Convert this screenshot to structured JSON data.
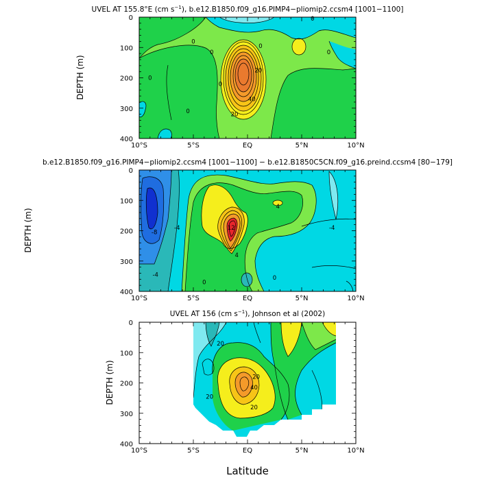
{
  "panels": [
    {
      "title_html": "UVEL AT 155.8°E (cm s<tspan baseline-shift=\"super\" font-size=\"7\">−1</tspan>), b.e12.B1850.f09_g16.PIMP4−pliomip2.ccsm4 [1001−1100]",
      "ylabel": "DEPTH (m)",
      "xticks": [
        "10°S",
        "5°S",
        "EQ",
        "5°N",
        "10°N"
      ],
      "yticks": [
        "0",
        "100",
        "200",
        "300",
        "400"
      ]
    },
    {
      "title": "b.e12.B1850.f09_g16.PIMP4−pliomip2.ccsm4 [1001−1100] − b.e12.B1850C5CN.f09_g16.preind.ccsm4 [80−179]",
      "ylabel": "DEPTH (m)",
      "xticks": [
        "10°S",
        "5°S",
        "EQ",
        "5°N",
        "10°N"
      ],
      "yticks": [
        "0",
        "100",
        "200",
        "300",
        "400"
      ]
    },
    {
      "title_html": "UVEL AT 156 (cm s<tspan baseline-shift=\"super\" font-size=\"7\">−1</tspan>), Johnson et al (2002)",
      "ylabel": "DEPTH (m)",
      "xticks": [
        "10°S",
        "5°S",
        "EQ",
        "5°N",
        "10°N"
      ],
      "yticks": [
        "0",
        "100",
        "200",
        "300",
        "400"
      ]
    }
  ],
  "xlabel": "Latitude",
  "colors": {
    "cyan_light": "#7fe9f0",
    "cyan": "#00d8e4",
    "teal": "#2ab8b8",
    "green_light": "#7de84a",
    "green": "#1fd14a",
    "yellow": "#f5ee1c",
    "yellow_orange": "#f7c417",
    "orange": "#f49a2a",
    "orange_deep": "#ea7a2e",
    "red": "#e8262c",
    "blue": "#1f6de0",
    "blue_dark": "#1030d0",
    "blue_mid": "#2f8fe8"
  },
  "chart_data": [
    {
      "type": "contour",
      "title": "UVEL AT 155.8°E (cm s−1), b.e12.B1850.f09_g16.PIMP4−pliomip2.ccsm4 [1001−1100]",
      "xlabel": "",
      "ylabel": "DEPTH (m)",
      "xlim": [
        -10,
        10
      ],
      "ylim": [
        400,
        0
      ],
      "contour_labels": [
        {
          "lat": 6.0,
          "depth": 5,
          "label": "0"
        },
        {
          "lat": -5.0,
          "depth": 80,
          "label": "0"
        },
        {
          "lat": -9.0,
          "depth": 200,
          "label": "0"
        },
        {
          "lat": -5.5,
          "depth": 310,
          "label": "0"
        },
        {
          "lat": -2.5,
          "depth": 220,
          "label": "0"
        },
        {
          "lat": -3.3,
          "depth": 115,
          "label": "0"
        },
        {
          "lat": 7.5,
          "depth": 115,
          "label": "0"
        },
        {
          "lat": 1.2,
          "depth": 95,
          "label": "0"
        },
        {
          "lat": 1.0,
          "depth": 175,
          "label": "20"
        },
        {
          "lat": -1.2,
          "depth": 320,
          "label": "20"
        },
        {
          "lat": 0.4,
          "depth": 270,
          "label": "40"
        }
      ],
      "jet_core": {
        "lat": -0.5,
        "depth": 190,
        "max_label": "40"
      }
    },
    {
      "type": "contour",
      "title": "b.e12.B1850.f09_g16.PIMP4−pliomip2.ccsm4 [1001−1100] − b.e12.B1850C5CN.f09_g16.preind.ccsm4 [80−179]",
      "xlabel": "",
      "ylabel": "DEPTH (m)",
      "xlim": [
        -10,
        10
      ],
      "ylim": [
        400,
        0
      ],
      "contour_labels": [
        {
          "lat": -8.6,
          "depth": 205,
          "label": "-8"
        },
        {
          "lat": -6.5,
          "depth": 190,
          "label": "-4"
        },
        {
          "lat": -8.5,
          "depth": 345,
          "label": "-4"
        },
        {
          "lat": -4.0,
          "depth": 370,
          "label": "0"
        },
        {
          "lat": 2.8,
          "depth": 120,
          "label": "4"
        },
        {
          "lat": -1.5,
          "depth": 190,
          "label": "12"
        },
        {
          "lat": -1.0,
          "depth": 280,
          "label": "4"
        },
        {
          "lat": 2.5,
          "depth": 355,
          "label": "0"
        },
        {
          "lat": 7.8,
          "depth": 190,
          "label": "-4"
        }
      ],
      "jet_core": {
        "lat": -1.5,
        "depth": 200
      }
    },
    {
      "type": "contour",
      "title": "UVEL AT 156 (cm s−1), Johnson et al (2002)",
      "xlabel": "Latitude",
      "ylabel": "DEPTH (m)",
      "xlim": [
        -10,
        10
      ],
      "ylim": [
        400,
        0
      ],
      "data_extent_lat": [
        -5,
        8
      ],
      "contour_labels": [
        {
          "lat": -2.5,
          "depth": 70,
          "label": "20"
        },
        {
          "lat": -3.5,
          "depth": 245,
          "label": "20"
        },
        {
          "lat": 0.8,
          "depth": 180,
          "label": "20"
        },
        {
          "lat": 0.6,
          "depth": 215,
          "label": "40"
        },
        {
          "lat": 0.6,
          "depth": 280,
          "label": "20"
        }
      ],
      "jet_core": {
        "lat": -0.5,
        "depth": 200
      }
    }
  ]
}
